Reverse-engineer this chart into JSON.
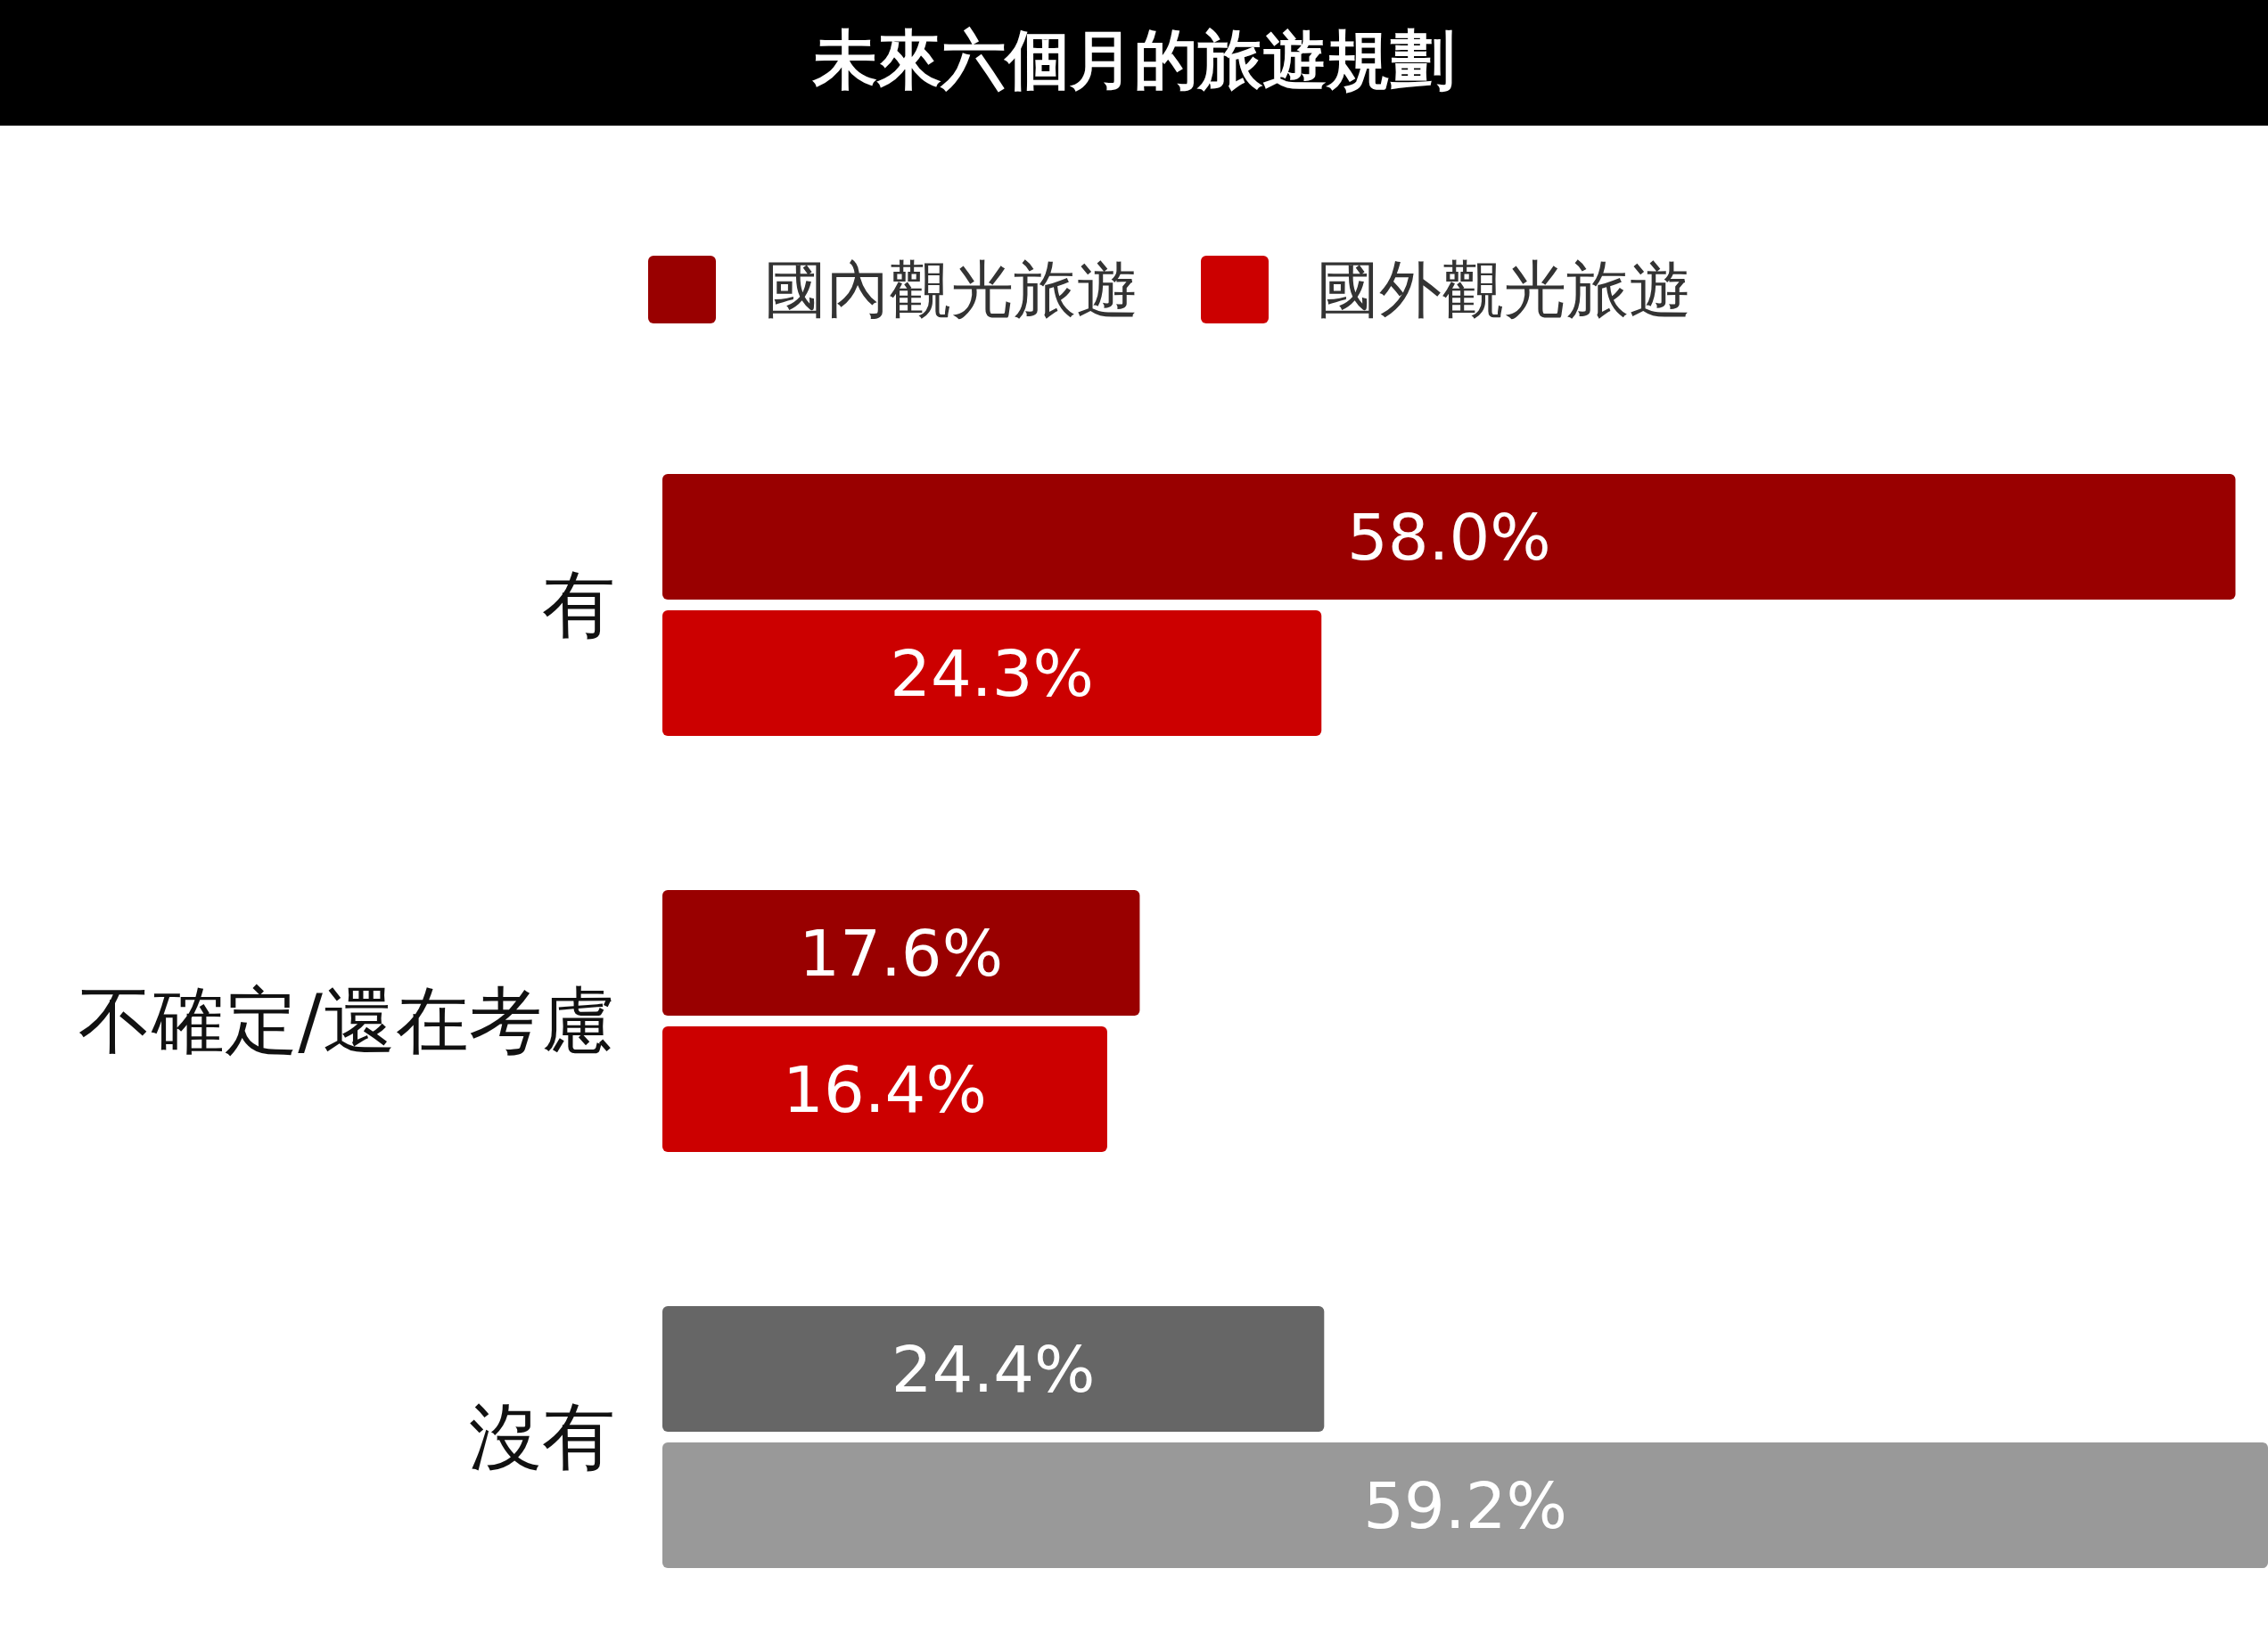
{
  "chart_data": {
    "type": "bar",
    "orientation": "horizontal",
    "title": "未來六個月的旅遊規劃",
    "legend": "top",
    "categories": [
      "有",
      "不確定/還在考慮",
      "沒有"
    ],
    "series": [
      {
        "name": "國內觀光旅遊",
        "color": "#990000",
        "colors": [
          "#990000",
          "#990000",
          "#666666"
        ],
        "values": [
          58.0,
          17.6,
          24.4
        ],
        "value_labels": [
          "58.0%",
          "17.6%",
          "24.4%"
        ]
      },
      {
        "name": "國外觀光旅遊",
        "color": "#cc0000",
        "colors": [
          "#cc0000",
          "#cc0000",
          "#999999"
        ],
        "values": [
          24.3,
          16.4,
          59.2
        ],
        "value_labels": [
          "24.3%",
          "16.4%",
          "59.2%"
        ]
      }
    ]
  }
}
